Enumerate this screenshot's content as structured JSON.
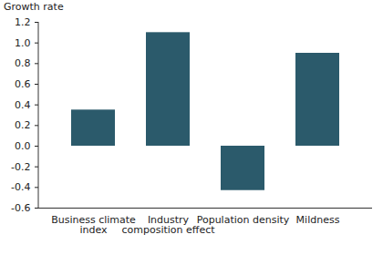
{
  "chart_data": {
    "type": "bar",
    "y_label": "Growth rate",
    "categories": [
      "Business climate index",
      "Industry composition effect",
      "Population density",
      "Mildness"
    ],
    "values": [
      0.35,
      1.1,
      -0.43,
      0.9
    ],
    "color": "#2b5a6b",
    "ylim": [
      -0.6,
      1.2
    ],
    "yticks": [
      -0.6,
      -0.4,
      -0.2,
      {
        "value": 0,
        "label": "0.0"
      },
      0.2,
      0.4,
      0.6,
      0.8,
      {
        "value": 1,
        "label": "1.0"
      },
      1.2
    ],
    "grid": false
  }
}
